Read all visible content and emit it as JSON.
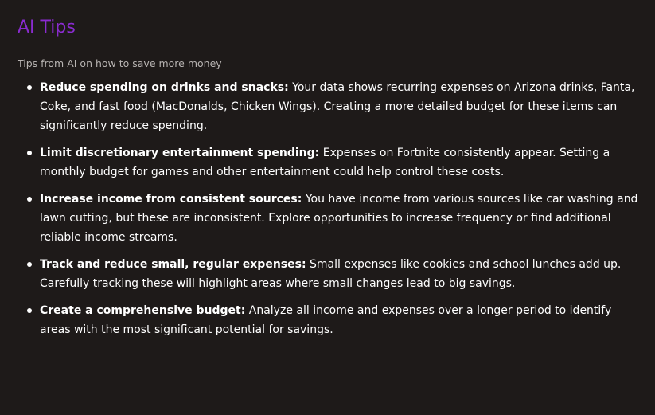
{
  "panel": {
    "title": "AI Tips",
    "subtitle": "Tips from AI on how to save more money"
  },
  "tips": [
    {
      "heading": "Reduce spending on drinks and snacks:",
      "body": "Your data shows recurring expenses on Arizona drinks, Fanta, Coke, and fast food (MacDonalds, Chicken Wings). Creating a more detailed budget for these items can significantly reduce spending."
    },
    {
      "heading": "Limit discretionary entertainment spending:",
      "body": "Expenses on Fortnite consistently appear. Setting a monthly budget for games and other entertainment could help control these costs."
    },
    {
      "heading": "Increase income from consistent sources:",
      "body": "You have income from various sources like car washing and lawn cutting, but these are inconsistent. Explore opportunities to increase frequency or find additional reliable income streams."
    },
    {
      "heading": "Track and reduce small, regular expenses:",
      "body": "Small expenses like cookies and school lunches add up. Carefully tracking these will highlight areas where small changes lead to big savings."
    },
    {
      "heading": "Create a comprehensive budget:",
      "body": "Analyze all income and expenses over a longer period to identify areas with the most significant potential for savings."
    }
  ],
  "colors": {
    "background": "#1e1a19",
    "title": "#8a2bd0",
    "subtitle": "#b7b3b1",
    "text": "#ffffff"
  }
}
